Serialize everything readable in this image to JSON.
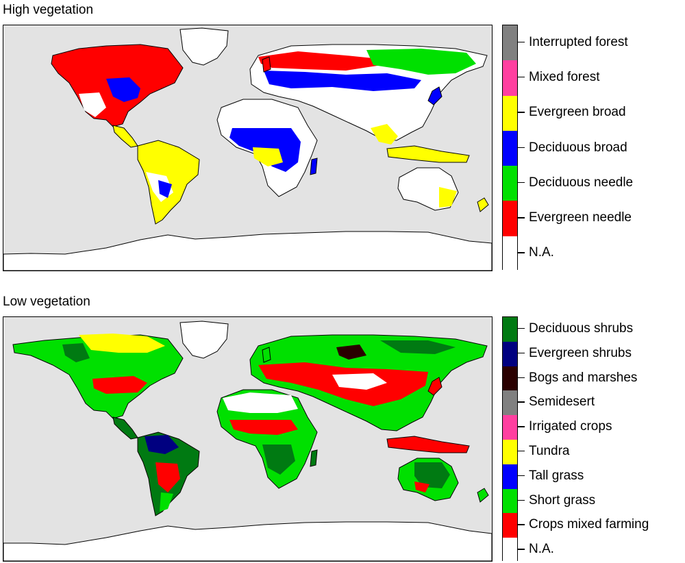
{
  "panels": {
    "high": {
      "title": "High vegetation",
      "legend": [
        {
          "label": "Interrupted forest",
          "color": "#808080"
        },
        {
          "label": "Mixed forest",
          "color": "#ff3fa0"
        },
        {
          "label": "Evergreen broad",
          "color": "#ffff00"
        },
        {
          "label": "Deciduous broad",
          "color": "#0000ff"
        },
        {
          "label": "Deciduous needle",
          "color": "#00e000"
        },
        {
          "label": "Evergreen needle",
          "color": "#ff0000"
        },
        {
          "label": "N.A.",
          "color": "#ffffff"
        }
      ]
    },
    "low": {
      "title": "Low vegetation",
      "legend": [
        {
          "label": "Deciduous shrubs",
          "color": "#007a12"
        },
        {
          "label": "Evergreen shrubs",
          "color": "#000080"
        },
        {
          "label": "Bogs and marshes",
          "color": "#2a0000"
        },
        {
          "label": "Semidesert",
          "color": "#808080"
        },
        {
          "label": "Irrigated crops",
          "color": "#ff3fa0"
        },
        {
          "label": "Tundra",
          "color": "#ffff00"
        },
        {
          "label": "Tall grass",
          "color": "#0000ff"
        },
        {
          "label": "Short grass",
          "color": "#00e000"
        },
        {
          "label": "Crops mixed farming",
          "color": "#ff0000"
        },
        {
          "label": "N.A.",
          "color": "#ffffff"
        }
      ]
    }
  },
  "colors": {
    "ocean": "#e3e3e3",
    "coastline": "#000000",
    "rivers": "#9ab0c8"
  }
}
